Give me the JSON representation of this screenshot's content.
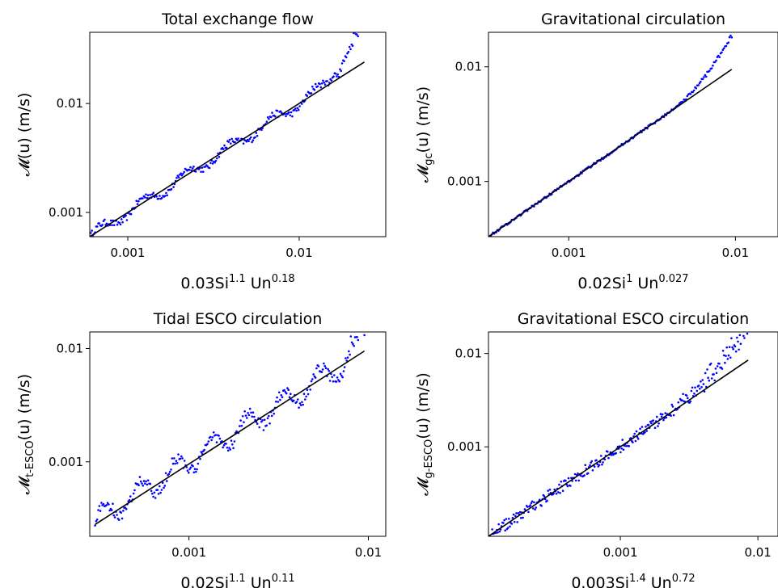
{
  "chart_data": [
    {
      "type": "scatter",
      "title": "Total exchange flow",
      "xlabel": {
        "coef": "0.03",
        "exp1": "1.1",
        "exp2": "0.18"
      },
      "ylabel": {
        "sym": "𝓜",
        "sub": "",
        "rest": "(u)  (m/s)"
      },
      "xscale": "log",
      "yscale": "log",
      "xlim": [
        0.0006,
        0.032
      ],
      "ylim": [
        0.0006,
        0.045
      ],
      "xticks": [
        {
          "value": 0.001,
          "label": "0.001"
        },
        {
          "value": 0.01,
          "label": "0.01"
        }
      ],
      "yticks": [
        {
          "value": 0.001,
          "label": "0.001"
        },
        {
          "value": 0.01,
          "label": "0.01"
        }
      ],
      "fit_line": {
        "x": [
          0.0006,
          0.024
        ],
        "y": [
          0.0006,
          0.024
        ]
      },
      "scatter_gen": {
        "x_start": 0.0006,
        "x_end": 0.024,
        "n": 260,
        "wave_amp": 0.05,
        "wave_period": 0.25,
        "upturn_start": 0.011,
        "upturn_amp": 0.35,
        "scatter": 0.06,
        "color": "#0000ff"
      }
    },
    {
      "type": "scatter",
      "title": "Gravitational circulation",
      "xlabel": {
        "coef": "0.02",
        "exp1": "1",
        "exp2": "0.027"
      },
      "ylabel": {
        "sym": "𝓜",
        "sub": "gc",
        "rest": "(u)  (m/s)"
      },
      "xscale": "log",
      "yscale": "log",
      "xlim": [
        0.00033,
        0.018
      ],
      "ylim": [
        0.00033,
        0.02
      ],
      "xticks": [
        {
          "value": 0.001,
          "label": "0.001"
        },
        {
          "value": 0.01,
          "label": "0.01"
        }
      ],
      "yticks": [
        {
          "value": 0.001,
          "label": "0.001"
        },
        {
          "value": 0.01,
          "label": "0.01"
        }
      ],
      "fit_line": {
        "x": [
          0.00033,
          0.0095
        ],
        "y": [
          0.00033,
          0.0095
        ]
      },
      "scatter_gen": {
        "x_start": 0.00033,
        "x_end": 0.0095,
        "n": 220,
        "wave_amp": 0.0,
        "wave_period": 0.3,
        "upturn_start": 0.004,
        "upturn_amp": 0.3,
        "scatter": 0.02,
        "color": "#0000ff"
      }
    },
    {
      "type": "scatter",
      "title": "Tidal ESCO circulation",
      "xlabel": {
        "coef": "0.02",
        "exp1": "1.1",
        "exp2": "0.11"
      },
      "ylabel": {
        "sym": "𝓜",
        "sub": "t-ESCO",
        "rest": "(u)  (m/s)"
      },
      "xscale": "log",
      "yscale": "log",
      "xlim": [
        0.00028,
        0.0125
      ],
      "ylim": [
        0.00022,
        0.014
      ],
      "xticks": [
        {
          "value": 0.001,
          "label": "0.001"
        },
        {
          "value": 0.01,
          "label": "0.01"
        }
      ],
      "yticks": [
        {
          "value": 0.001,
          "label": "0.001"
        },
        {
          "value": 0.01,
          "label": "0.01"
        }
      ],
      "fit_line": {
        "x": [
          0.0003,
          0.0095
        ],
        "y": [
          0.00028,
          0.0095
        ]
      },
      "scatter_gen": {
        "x_start": 0.0003,
        "x_end": 0.0095,
        "n": 260,
        "wave_amp": 0.1,
        "wave_period": 0.2,
        "upturn_start": 0.007,
        "upturn_amp": 0.2,
        "scatter": 0.1,
        "color": "#0000ff"
      }
    },
    {
      "type": "scatter",
      "title": "Gravitational ESCO circulation",
      "xlabel": {
        "coef": "0.003",
        "exp1": "1.4",
        "exp2": "0.72"
      },
      "ylabel": {
        "sym": "𝓜",
        "sub": "g-ESCO",
        "rest": "(u)  (m/s)"
      },
      "xscale": "log",
      "yscale": "log",
      "xlim": [
        0.00011,
        0.014
      ],
      "ylim": [
        0.00011,
        0.017
      ],
      "xticks": [
        {
          "value": 0.001,
          "label": "0.001"
        },
        {
          "value": 0.01,
          "label": "0.01"
        }
      ],
      "yticks": [
        {
          "value": 0.001,
          "label": "0.001"
        },
        {
          "value": 0.01,
          "label": "0.01"
        }
      ],
      "fit_line": {
        "x": [
          0.00011,
          0.0085
        ],
        "y": [
          0.00011,
          0.0085
        ]
      },
      "scatter_gen": {
        "x_start": 0.00011,
        "x_end": 0.0085,
        "n": 280,
        "wave_amp": 0.0,
        "wave_period": 0.3,
        "upturn_start": 0.002,
        "upturn_amp": 0.35,
        "scatter": 0.12,
        "color": "#0000ff"
      }
    }
  ]
}
